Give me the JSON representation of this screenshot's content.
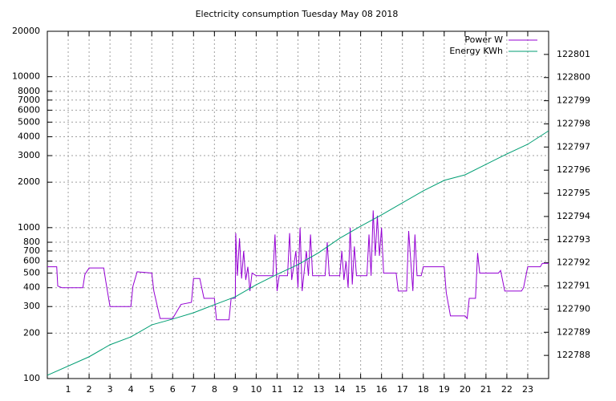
{
  "chart_data": {
    "type": "line",
    "title": "Electricity consumption Tuesday May 08 2018",
    "xlim": [
      0,
      24
    ],
    "xticks": [
      1,
      2,
      3,
      4,
      5,
      6,
      7,
      8,
      9,
      10,
      11,
      12,
      13,
      14,
      15,
      16,
      17,
      18,
      19,
      20,
      21,
      22,
      23
    ],
    "ylim": [
      100,
      20000
    ],
    "ylog": true,
    "yticks": [
      100,
      200,
      300,
      400,
      500,
      600,
      700,
      800,
      1000,
      2000,
      3000,
      4000,
      5000,
      6000,
      7000,
      8000,
      10000,
      20000
    ],
    "y2lim": [
      122787,
      122802
    ],
    "y2ticks": [
      122788,
      122789,
      122790,
      122791,
      122792,
      122793,
      122794,
      122795,
      122796,
      122797,
      122798,
      122799,
      122800,
      122801
    ],
    "grid": true,
    "legend": "top-right",
    "series": [
      {
        "name": "Power W",
        "color": "#9400d3",
        "x": [
          0,
          0.45,
          0.5,
          0.7,
          1.7,
          1.8,
          2.0,
          2.7,
          2.8,
          3.0,
          4.0,
          4.1,
          4.3,
          5.0,
          5.1,
          5.4,
          6.0,
          6.4,
          6.9,
          7.0,
          7.3,
          7.5,
          8.0,
          8.1,
          8.7,
          8.8,
          9.0,
          9.02,
          9.1,
          9.2,
          9.3,
          9.4,
          9.5,
          9.6,
          9.7,
          9.8,
          10.0,
          10.8,
          10.9,
          11.0,
          11.1,
          11.5,
          11.6,
          11.7,
          11.9,
          12.0,
          12.1,
          12.2,
          12.4,
          12.5,
          12.6,
          12.7,
          13.3,
          13.4,
          13.5,
          14.0,
          14.1,
          14.2,
          14.3,
          14.4,
          14.5,
          14.6,
          14.7,
          14.8,
          15.0,
          15.3,
          15.4,
          15.5,
          15.6,
          15.7,
          15.8,
          15.9,
          16.0,
          16.1,
          16.7,
          16.8,
          17.2,
          17.3,
          17.4,
          17.5,
          17.6,
          17.7,
          17.9,
          18.0,
          19.0,
          19.1,
          19.3,
          20.0,
          20.1,
          20.2,
          20.5,
          20.6,
          20.7,
          21.6,
          21.7,
          21.9,
          22.7,
          22.8,
          23.0,
          23.6,
          23.7,
          24
        ],
        "values": [
          550,
          550,
          410,
          400,
          400,
          490,
          540,
          540,
          440,
          300,
          300,
          410,
          510,
          500,
          380,
          250,
          250,
          310,
          320,
          460,
          460,
          340,
          340,
          245,
          245,
          340,
          340,
          920,
          480,
          850,
          460,
          700,
          450,
          550,
          380,
          500,
          480,
          480,
          900,
          380,
          480,
          480,
          920,
          450,
          700,
          400,
          1000,
          380,
          700,
          480,
          900,
          480,
          480,
          800,
          480,
          480,
          700,
          450,
          600,
          400,
          1000,
          420,
          750,
          480,
          480,
          480,
          900,
          480,
          1300,
          650,
          1200,
          650,
          1000,
          500,
          500,
          380,
          380,
          950,
          600,
          380,
          900,
          480,
          480,
          550,
          550,
          370,
          260,
          260,
          250,
          340,
          340,
          680,
          500,
          500,
          520,
          380,
          380,
          400,
          550,
          550,
          580,
          580
        ]
      },
      {
        "name": "Energy KWh",
        "color": "#009e73",
        "axis": "y2",
        "x": [
          0,
          2,
          3,
          4,
          5,
          6,
          7,
          8,
          9,
          10,
          11,
          12,
          13,
          14,
          15,
          16,
          17,
          18,
          19,
          20,
          21,
          22,
          23,
          24
        ],
        "values": [
          122787.14,
          122787.94,
          122788.46,
          122788.8,
          122789.32,
          122789.57,
          122789.84,
          122790.19,
          122790.53,
          122791.05,
          122791.5,
          122791.92,
          122792.44,
          122793.06,
          122793.58,
          122794.07,
          122794.59,
          122795.11,
          122795.56,
          122795.8,
          122796.25,
          122796.7,
          122797.12,
          122797.7
        ]
      }
    ]
  }
}
